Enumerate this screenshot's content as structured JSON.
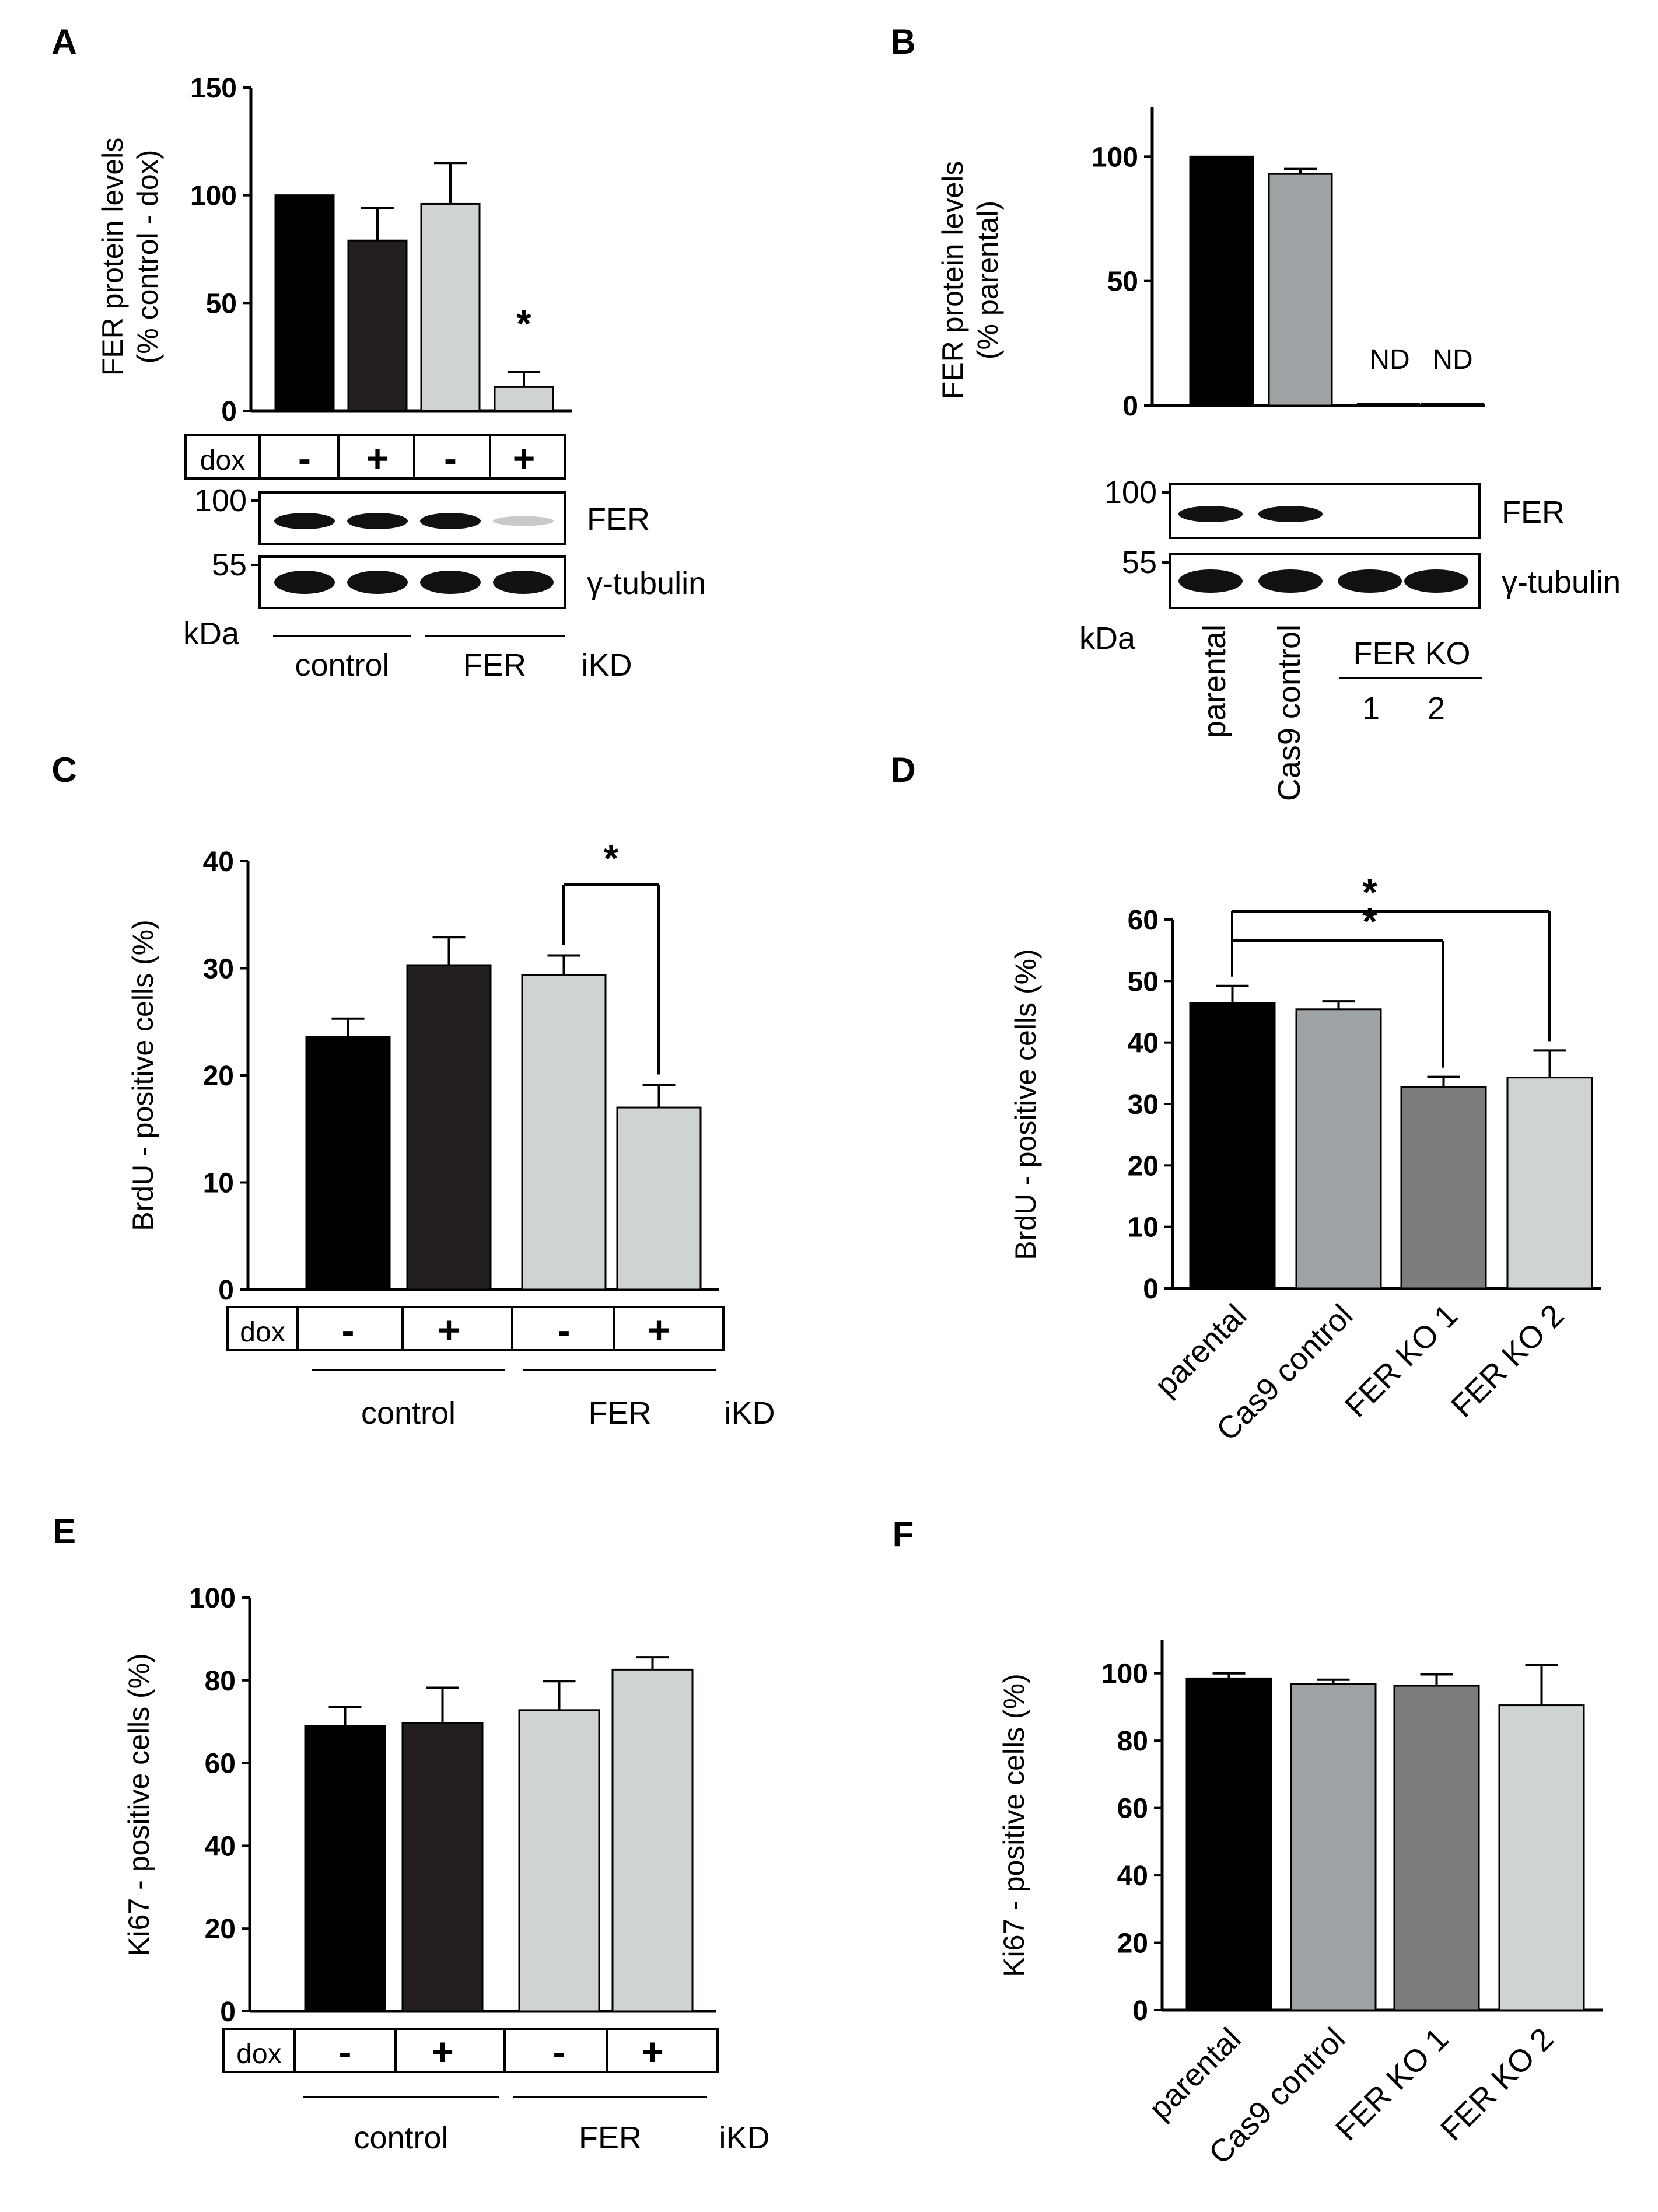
{
  "chart_data": [
    {
      "panel": "A",
      "type": "bar",
      "ylabel": "FER protein levels",
      "ylabel_line2": "(% control - dox)",
      "ylim": [
        0,
        150
      ],
      "yticks": [
        "0",
        "50",
        "100",
        "150"
      ],
      "dox_label": "dox",
      "categories": [
        "-",
        "+",
        "-",
        "+"
      ],
      "values": [
        100,
        79,
        96,
        11
      ],
      "errors": [
        0,
        15,
        19,
        7
      ],
      "colors": [
        "#000000",
        "#231f20",
        "#cfd3d4",
        "#cfd3d4"
      ],
      "significance": [
        {
          "index": 3,
          "label": "*"
        }
      ],
      "group_labels": [
        "control",
        "FER"
      ],
      "group_suffix": "iKD",
      "blot": {
        "markers": [
          "100",
          "55"
        ],
        "proteins": [
          "FER",
          "γ-tubulin"
        ],
        "unit": "kDa"
      }
    },
    {
      "panel": "B",
      "type": "bar",
      "ylabel": "FER protein levels",
      "ylabel_line2": "(% parental)",
      "ylim": [
        0,
        120
      ],
      "yticks": [
        "0",
        "50",
        "100"
      ],
      "categories": [
        "parental",
        "Cas9 control",
        "1",
        "2"
      ],
      "values": [
        100,
        93,
        0,
        0
      ],
      "errors": [
        0,
        2,
        0,
        0
      ],
      "colors": [
        "#000000",
        "#9fa2a5",
        "#cfd3d4",
        "#cfd3d4"
      ],
      "nd_labels": [
        "ND",
        "ND"
      ],
      "group_label": "FER KO",
      "blot": {
        "markers": [
          "100",
          "55"
        ],
        "proteins": [
          "FER",
          "γ-tubulin"
        ],
        "unit": "kDa"
      }
    },
    {
      "panel": "C",
      "type": "bar",
      "ylabel": "BrdU - positive cells (%)",
      "ylim": [
        0,
        40
      ],
      "yticks": [
        "0",
        "10",
        "20",
        "30",
        "40"
      ],
      "dox_label": "dox",
      "categories": [
        "-",
        "+",
        "-",
        "+"
      ],
      "values": [
        23.6,
        30.3,
        29.4,
        17.0
      ],
      "errors": [
        1.7,
        2.6,
        1.8,
        2.1
      ],
      "colors": [
        "#000000",
        "#231f20",
        "#cfd3d4",
        "#cfd3d4"
      ],
      "significance": [
        {
          "from": 2,
          "to": 3,
          "label": "*"
        }
      ],
      "group_labels": [
        "control",
        "FER"
      ],
      "group_suffix": "iKD"
    },
    {
      "panel": "D",
      "type": "bar",
      "ylabel": "BrdU - positive cells (%)",
      "ylim": [
        0,
        60
      ],
      "yticks": [
        "0",
        "10",
        "20",
        "30",
        "40",
        "50",
        "60"
      ],
      "categories": [
        "parental",
        "Cas9 control",
        "FER KO 1",
        "FER KO 2"
      ],
      "values": [
        46.4,
        45.4,
        32.8,
        34.3
      ],
      "errors": [
        2.8,
        1.3,
        1.6,
        4.4
      ],
      "colors": [
        "#000000",
        "#9fa2a5",
        "#7b7c7e",
        "#cfd3d4"
      ],
      "significance": [
        {
          "from": 0,
          "to": 2,
          "label": "*"
        },
        {
          "from": 0,
          "to": 3,
          "label": "*"
        }
      ]
    },
    {
      "panel": "E",
      "type": "bar",
      "ylabel": "Ki67 - positive cells (%)",
      "ylim": [
        0,
        100
      ],
      "yticks": [
        "0",
        "20",
        "40",
        "60",
        "80",
        "100"
      ],
      "dox_label": "dox",
      "categories": [
        "-",
        "+",
        "-",
        "+"
      ],
      "values": [
        69,
        69.7,
        72.8,
        82.6
      ],
      "errors": [
        4.5,
        8.5,
        7,
        3
      ],
      "colors": [
        "#000000",
        "#231f20",
        "#cfd3d4",
        "#cfd3d4"
      ],
      "group_labels": [
        "control",
        "FER"
      ],
      "group_suffix": "iKD"
    },
    {
      "panel": "F",
      "type": "bar",
      "ylabel": "Ki67 - positive cells (%)",
      "ylim": [
        0,
        110
      ],
      "yticks": [
        "0",
        "20",
        "40",
        "60",
        "80",
        "100"
      ],
      "categories": [
        "parental",
        "Cas9 control",
        "FER KO 1",
        "FER KO 2"
      ],
      "values": [
        98.5,
        96.8,
        96.3,
        90.5
      ],
      "errors": [
        1.5,
        1.3,
        3.4,
        12
      ],
      "colors": [
        "#000000",
        "#9fa2a5",
        "#7b7c7e",
        "#cfd3d4"
      ]
    }
  ]
}
